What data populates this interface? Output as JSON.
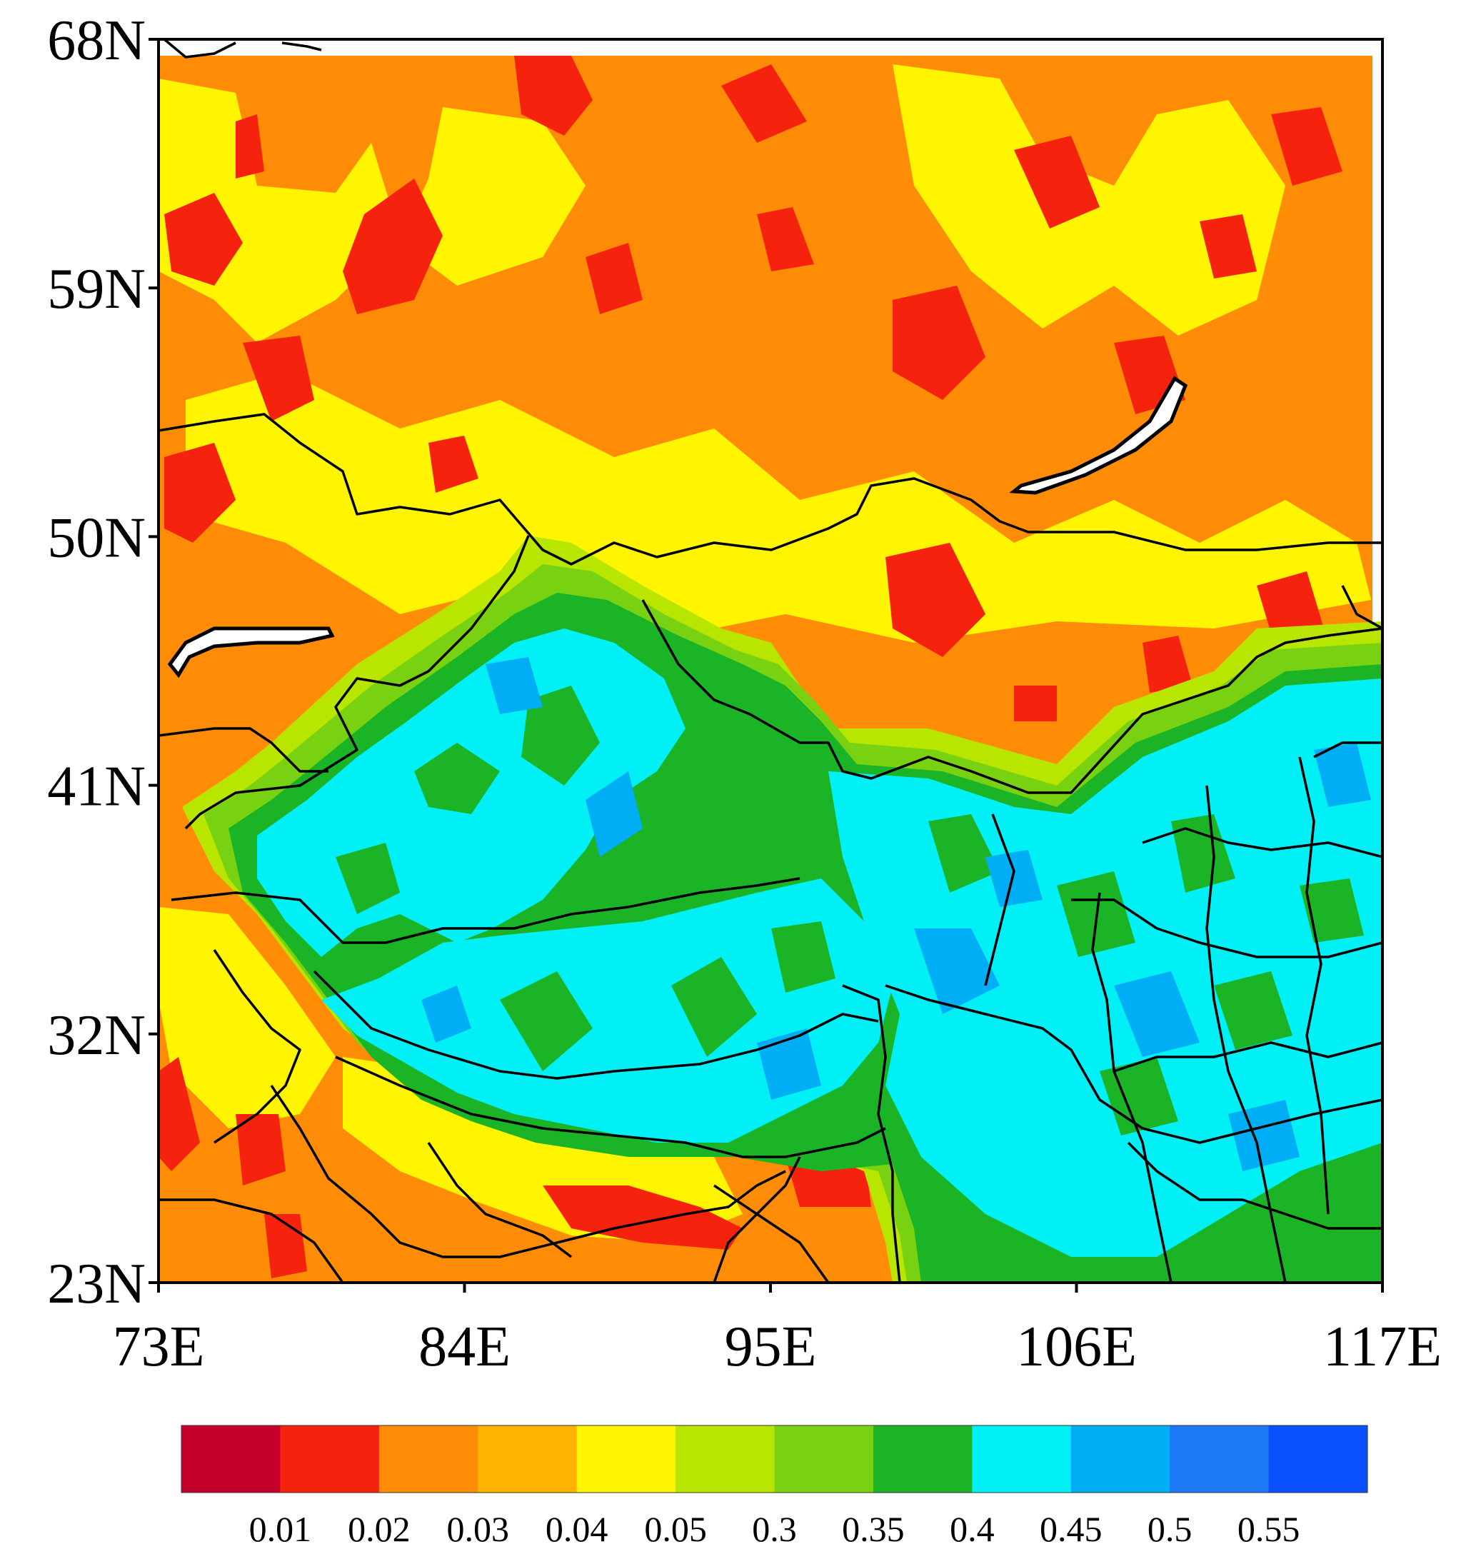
{
  "map": {
    "lat_labels": [
      "68N",
      "59N",
      "50N",
      "41N",
      "32N",
      "23N"
    ],
    "lon_labels": [
      "73E",
      "84E",
      "95E",
      "106E",
      "117E"
    ],
    "extent": {
      "lon_min": 73,
      "lon_max": 117,
      "lat_min": 23,
      "lat_max": 68
    }
  },
  "legend": {
    "labels": [
      "0.01",
      "0.02",
      "0.03",
      "0.04",
      "0.05",
      "0.3",
      "0.35",
      "0.4",
      "0.45",
      "0.5",
      "0.55"
    ],
    "colors": [
      "#c4002b",
      "#f5230d",
      "#ff8c07",
      "#ffb300",
      "#fff500",
      "#b8e600",
      "#78d211",
      "#1bb426",
      "#00f0f5",
      "#00aef5",
      "#1c78f5",
      "#0a50ff"
    ]
  }
}
